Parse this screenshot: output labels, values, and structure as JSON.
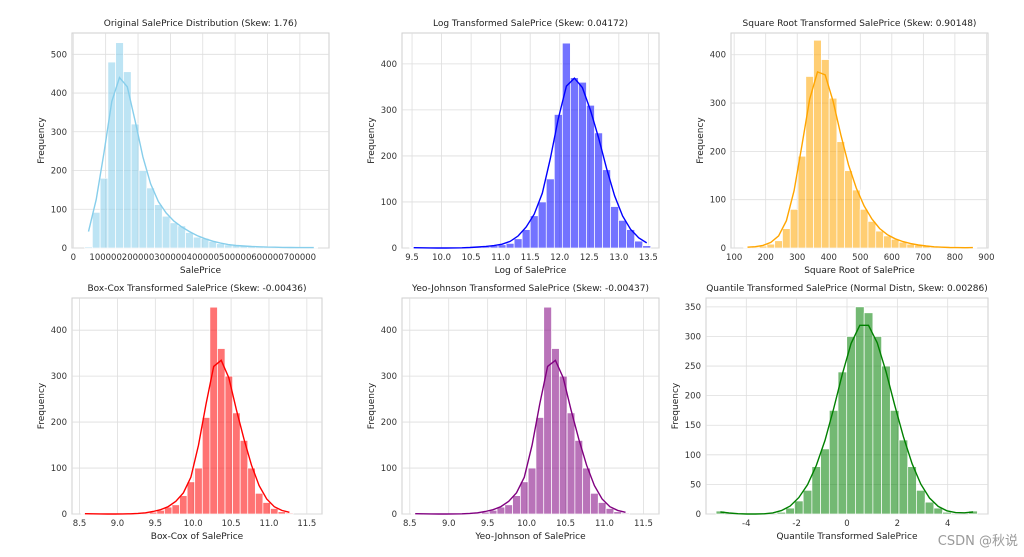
{
  "figure": {
    "watermark": "CSDN @秋说"
  },
  "chart_data": [
    {
      "type": "bar",
      "title": "Original SalePrice Distribution (Skew: 1.76)",
      "xlabel": "SalePrice",
      "ylabel": "Frequency",
      "color": "#87ceeb",
      "xlim": [
        -4000,
        790000
      ],
      "ylim": [
        0,
        555
      ],
      "xticks": [
        0,
        100000,
        200000,
        300000,
        400000,
        500000,
        600000,
        700000
      ],
      "yticks": [
        0,
        100,
        200,
        300,
        400,
        500
      ],
      "bin_start": 34900,
      "bin_width": 24000,
      "counts": [
        3,
        92,
        180,
        480,
        530,
        455,
        320,
        200,
        155,
        112,
        82,
        65,
        57,
        40,
        28,
        25,
        17,
        11,
        8,
        6,
        5,
        4,
        3,
        2,
        2,
        2,
        1,
        1,
        1,
        1
      ]
    },
    {
      "type": "bar",
      "title": "Log Transformed SalePrice (Skew: 0.04172)",
      "xlabel": "Log of SalePrice",
      "ylabel": "Frequency",
      "color": "#0000ff",
      "xlim": [
        9.33,
        13.68
      ],
      "ylim": [
        0,
        467
      ],
      "xticks": [
        9.5,
        10.0,
        10.5,
        11.0,
        11.5,
        12.0,
        12.5,
        13.0,
        13.5
      ],
      "yticks": [
        0,
        100,
        200,
        300,
        400
      ],
      "bin_start": 9.46,
      "bin_width": 0.136,
      "counts": [
        1,
        0,
        0,
        0,
        0,
        0,
        0,
        1,
        2,
        3,
        5,
        7,
        10,
        20,
        40,
        70,
        100,
        150,
        290,
        445,
        370,
        360,
        310,
        250,
        170,
        90,
        60,
        40,
        15,
        5
      ]
    },
    {
      "type": "bar",
      "title": "Square Root Transformed SalePrice (Skew: 0.90148)",
      "xlabel": "Square Root of SalePrice",
      "ylabel": "Frequency",
      "color": "#ffa500",
      "xlim": [
        90,
        905
      ],
      "ylim": [
        0,
        445
      ],
      "xticks": [
        100,
        200,
        300,
        400,
        500,
        600,
        700,
        800,
        900
      ],
      "yticks": [
        0,
        100,
        200,
        300,
        400
      ],
      "bin_start": 130,
      "bin_width": 24.65,
      "counts": [
        1,
        2,
        4,
        8,
        15,
        40,
        80,
        190,
        355,
        430,
        390,
        310,
        220,
        160,
        120,
        80,
        55,
        35,
        25,
        18,
        12,
        8,
        6,
        4,
        2,
        1,
        1,
        1,
        0,
        1
      ]
    },
    {
      "type": "bar",
      "title": "Box-Cox Transformed SalePrice (Skew: -0.00436)",
      "xlabel": "Box-Cox of SalePrice",
      "ylabel": "Frequency",
      "color": "#ff0000",
      "xlim": [
        8.4,
        11.7
      ],
      "ylim": [
        0,
        470
      ],
      "xticks": [
        8.5,
        9.0,
        9.5,
        10.0,
        10.5,
        11.0,
        11.5
      ],
      "yticks": [
        0,
        100,
        200,
        300,
        400
      ],
      "bin_start": 8.52,
      "bin_width": 0.1,
      "counts": [
        1,
        0,
        0,
        0,
        0,
        0,
        0,
        1,
        2,
        4,
        8,
        15,
        20,
        40,
        70,
        100,
        210,
        450,
        360,
        300,
        220,
        160,
        100,
        45,
        25,
        12,
        5,
        2
      ]
    },
    {
      "type": "bar",
      "title": "Yeo-Johnson Transformed SalePrice (Skew: -0.00437)",
      "xlabel": "Yeo-Johnson of SalePrice",
      "ylabel": "Frequency",
      "color": "#800080",
      "xlim": [
        8.4,
        11.7
      ],
      "ylim": [
        0,
        470
      ],
      "xticks": [
        8.5,
        9.0,
        9.5,
        10.0,
        10.5,
        11.0,
        11.5
      ],
      "yticks": [
        0,
        100,
        200,
        300,
        400
      ],
      "bin_start": 8.52,
      "bin_width": 0.1,
      "counts": [
        1,
        0,
        0,
        0,
        0,
        0,
        0,
        1,
        2,
        4,
        8,
        15,
        20,
        40,
        70,
        100,
        210,
        450,
        360,
        300,
        220,
        160,
        100,
        45,
        25,
        12,
        5,
        2
      ]
    },
    {
      "type": "bar",
      "title": "Quantile Transformed SalePrice (Normal Distn, Skew: 0.00286)",
      "xlabel": "Quantile Transformed SalePrice",
      "ylabel": "Frequency",
      "color": "#008000",
      "xlim": [
        -5.6,
        5.6
      ],
      "ylim": [
        0,
        365
      ],
      "xticks": [
        -4,
        -2,
        0,
        2,
        4
      ],
      "yticks": [
        0,
        50,
        100,
        150,
        200,
        250,
        300,
        350
      ],
      "bin_start": -5.2,
      "bin_width": 0.346,
      "counts": [
        5,
        0,
        0,
        0,
        0,
        0,
        0,
        3,
        10,
        22,
        40,
        80,
        110,
        175,
        240,
        300,
        350,
        340,
        300,
        250,
        175,
        125,
        80,
        40,
        20,
        10,
        3,
        0,
        0,
        5
      ]
    }
  ]
}
